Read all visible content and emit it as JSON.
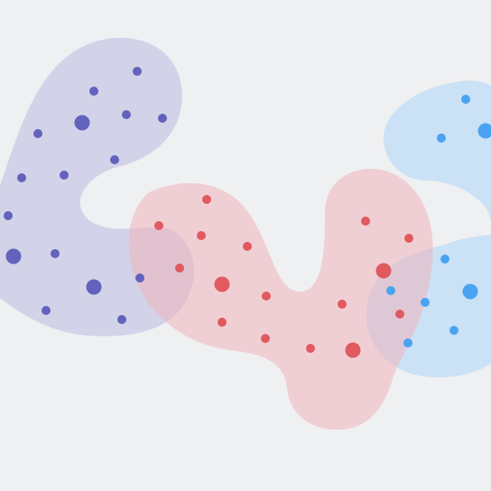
{
  "background_color": "#eff0f2",
  "clusters": [
    {
      "id": "purple",
      "blob_color": "#c9cae6",
      "blob_opacity": 0.78,
      "dot_color": "#6362bd",
      "point_count": 16
    },
    {
      "id": "red",
      "blob_color": "#f0b5bb",
      "blob_opacity": 0.55,
      "dot_color": "#e05a60",
      "point_count": 15
    },
    {
      "id": "blue",
      "blob_color": "#b5d8f7",
      "blob_opacity": 0.62,
      "dot_color": "#4aa3f2",
      "point_count": 10
    }
  ]
}
